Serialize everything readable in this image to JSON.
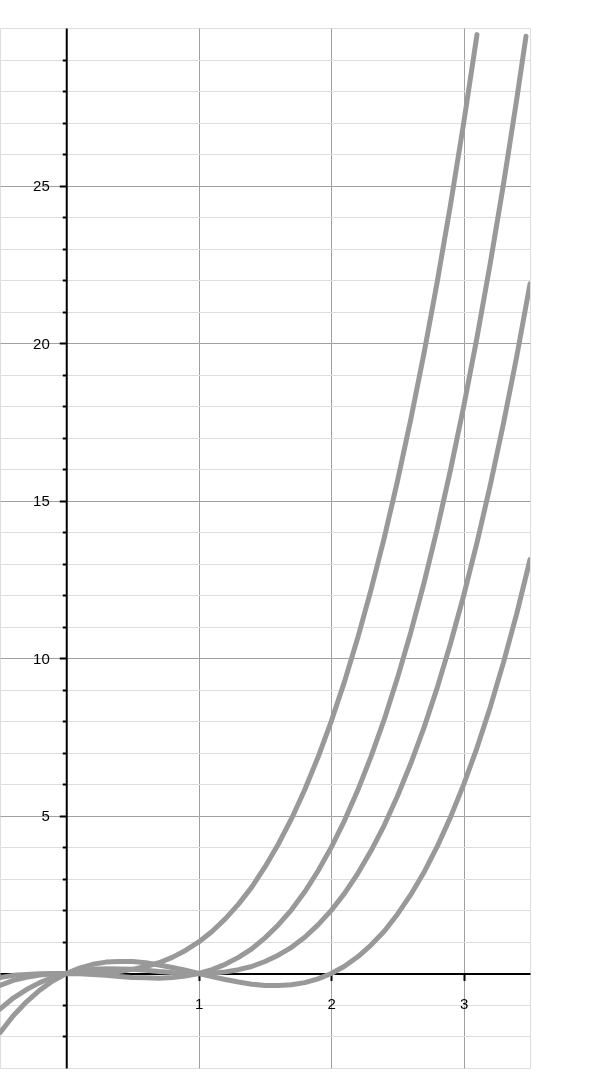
{
  "chart_data": {
    "type": "line",
    "xlim": [
      -0.5,
      3.5
    ],
    "ylim": [
      -3,
      30
    ],
    "xticks": [
      1,
      2,
      3
    ],
    "yticks": [
      {
        "value": -2,
        "label": null
      },
      {
        "value": -1,
        "label": null
      },
      {
        "value": 0,
        "label": null
      },
      {
        "value": 1,
        "label": null
      },
      {
        "value": 2,
        "label": null
      },
      {
        "value": 3,
        "label": null
      },
      {
        "value": 4,
        "label": null
      },
      5,
      {
        "value": 6,
        "label": null
      },
      {
        "value": 7,
        "label": null
      },
      {
        "value": 8,
        "label": null
      },
      {
        "value": 9,
        "label": null
      },
      10,
      {
        "value": 11,
        "label": null
      },
      {
        "value": 12,
        "label": null
      },
      {
        "value": 13,
        "label": null
      },
      {
        "value": 14,
        "label": null
      },
      15,
      {
        "value": 16,
        "label": null
      },
      {
        "value": 17,
        "label": null
      },
      {
        "value": 18,
        "label": null
      },
      {
        "value": 19,
        "label": null
      },
      20,
      {
        "value": 21,
        "label": null
      },
      {
        "value": 22,
        "label": null
      },
      {
        "value": 23,
        "label": null
      },
      {
        "value": 24,
        "label": null
      },
      25,
      {
        "value": 26,
        "label": null
      },
      {
        "value": 27,
        "label": null
      },
      {
        "value": 28,
        "label": null
      },
      {
        "value": 29,
        "label": null
      }
    ],
    "grid": true,
    "series": [
      {
        "color": "#999999",
        "x": [
          -0.5,
          -0.4,
          -0.3,
          -0.2,
          -0.1,
          0,
          0.1,
          0.2,
          0.3,
          0.4,
          0.5,
          0.6,
          0.7,
          0.8,
          0.9,
          1.0,
          1.1,
          1.2,
          1.3,
          1.4,
          1.5,
          1.6,
          1.7,
          1.8,
          1.9,
          2.0,
          2.1,
          2.2,
          2.3,
          2.4,
          2.5,
          2.6,
          2.7,
          2.8,
          2.9,
          3.0,
          3.1
        ],
        "values": [
          -0.13,
          -0.06,
          -0.03,
          -0.01,
          0,
          0,
          0,
          0.01,
          0.03,
          0.06,
          0.13,
          0.22,
          0.34,
          0.51,
          0.73,
          1,
          1.33,
          1.73,
          2.2,
          2.74,
          3.38,
          4.1,
          4.91,
          5.83,
          6.86,
          8,
          9.26,
          10.65,
          12.17,
          13.82,
          15.63,
          17.58,
          19.68,
          21.95,
          24.39,
          27,
          29.79
        ]
      },
      {
        "color": "#999999",
        "x": [
          -0.5,
          -0.4,
          -0.3,
          -0.2,
          -0.1,
          0,
          0.1,
          0.2,
          0.3,
          0.4,
          0.5,
          0.6,
          0.7,
          0.8,
          0.9,
          1.0,
          1.1,
          1.2,
          1.3,
          1.4,
          1.5,
          1.6,
          1.7,
          1.8,
          1.9,
          2.0,
          2.1,
          2.2,
          2.3,
          2.4,
          2.5,
          2.6,
          2.7,
          2.8,
          2.9,
          3.0,
          3.1,
          3.2,
          3.3,
          3.4,
          3.47
        ],
        "values": [
          -0.38,
          -0.22,
          -0.12,
          -0.05,
          -0.01,
          0,
          -0.01,
          -0.03,
          -0.06,
          -0.1,
          -0.13,
          -0.14,
          -0.15,
          -0.13,
          -0.08,
          0,
          0.12,
          0.29,
          0.51,
          0.78,
          1.13,
          1.54,
          2.02,
          2.59,
          3.25,
          4,
          4.85,
          5.81,
          6.88,
          8.06,
          9.38,
          10.82,
          12.39,
          14.11,
          15.98,
          18,
          20.18,
          22.53,
          25.05,
          27.74,
          29.74
        ]
      },
      {
        "color": "#999999",
        "x": [
          -0.5,
          -0.4,
          -0.3,
          -0.2,
          -0.1,
          0,
          0.1,
          0.2,
          0.3,
          0.4,
          0.5,
          0.6,
          0.7,
          0.8,
          0.9,
          1.0,
          1.1,
          1.2,
          1.3,
          1.4,
          1.5,
          1.6,
          1.7,
          1.8,
          1.9,
          2.0,
          2.1,
          2.2,
          2.3,
          2.4,
          2.5,
          2.6,
          2.7,
          2.8,
          2.9,
          3.0,
          3.1,
          3.2,
          3.3,
          3.4,
          3.5
        ],
        "values": [
          -1.13,
          -0.78,
          -0.51,
          -0.29,
          -0.12,
          0,
          0.08,
          0.13,
          0.15,
          0.14,
          0.13,
          0.1,
          0.06,
          0.03,
          0.01,
          0,
          0.01,
          0.05,
          0.12,
          0.22,
          0.38,
          0.58,
          0.83,
          1.15,
          1.54,
          2,
          2.54,
          3.17,
          3.89,
          4.7,
          5.63,
          6.66,
          7.8,
          9.07,
          10.47,
          12,
          13.67,
          15.49,
          17.46,
          19.58,
          21.88
        ]
      },
      {
        "color": "#999999",
        "x": [
          -0.5,
          -0.4,
          -0.3,
          -0.2,
          -0.1,
          0,
          0.1,
          0.2,
          0.3,
          0.4,
          0.5,
          0.6,
          0.7,
          0.8,
          0.9,
          1.0,
          1.1,
          1.2,
          1.3,
          1.4,
          1.5,
          1.6,
          1.7,
          1.8,
          1.9,
          2.0,
          2.1,
          2.2,
          2.3,
          2.4,
          2.5,
          2.6,
          2.7,
          2.8,
          2.9,
          3.0,
          3.1,
          3.2,
          3.3,
          3.4,
          3.5
        ],
        "values": [
          -1.88,
          -1.34,
          -0.9,
          -0.53,
          -0.23,
          0,
          0.17,
          0.29,
          0.36,
          0.38,
          0.38,
          0.34,
          0.27,
          0.19,
          0.1,
          0,
          -0.1,
          -0.19,
          -0.27,
          -0.34,
          -0.38,
          -0.38,
          -0.36,
          -0.29,
          -0.17,
          0,
          0.23,
          0.53,
          0.9,
          1.34,
          1.88,
          2.5,
          3.21,
          4.03,
          4.96,
          6,
          7.16,
          8.45,
          9.87,
          11.42,
          13.13
        ]
      }
    ]
  }
}
